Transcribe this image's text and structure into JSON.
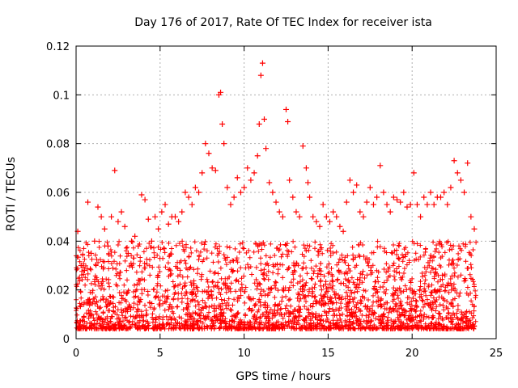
{
  "chart_data": {
    "type": "scatter",
    "title": "Day 176 of 2017, Rate Of TEC Index for receiver ista",
    "xlabel": "GPS time / hours",
    "ylabel": "ROTI / TECUs",
    "xlim": [
      0,
      25
    ],
    "ylim": [
      0,
      0.12
    ],
    "xticks": [
      0,
      5,
      10,
      15,
      20,
      25
    ],
    "yticks": [
      0,
      0.02,
      0.04,
      0.06,
      0.08,
      0.1,
      0.12
    ],
    "xtick_labels": [
      "0",
      "5",
      "10",
      "15",
      "20",
      "25"
    ],
    "ytick_labels": [
      "0",
      "0.02",
      "0.04",
      "0.06",
      "0.08",
      "0.1",
      "0.12"
    ],
    "grid": true,
    "marker": "+",
    "series_color": "#ff0000",
    "series": [
      {
        "name": "ROTI",
        "x": [
          0.1,
          0.3,
          0.5,
          0.7,
          0.9,
          1.1,
          1.3,
          1.5,
          1.7,
          1.9,
          2.1,
          2.3,
          2.5,
          2.7,
          2.9,
          3.1,
          3.3,
          3.5,
          3.7,
          3.9,
          4.1,
          4.3,
          4.5,
          4.7,
          4.9,
          5.1,
          5.3,
          5.5,
          5.7,
          5.9,
          6.1,
          6.3,
          6.5,
          6.7,
          6.9,
          7.1,
          7.3,
          7.5,
          7.7,
          7.9,
          8.1,
          8.3,
          8.5,
          8.6,
          8.7,
          8.8,
          9.0,
          9.2,
          9.4,
          9.6,
          9.8,
          10.0,
          10.2,
          10.4,
          10.6,
          10.8,
          10.9,
          11.0,
          11.1,
          11.2,
          11.3,
          11.5,
          11.7,
          11.9,
          12.1,
          12.3,
          12.5,
          12.6,
          12.7,
          12.9,
          13.1,
          13.3,
          13.5,
          13.7,
          13.8,
          13.9,
          14.1,
          14.3,
          14.5,
          14.7,
          14.9,
          15.1,
          15.3,
          15.5,
          15.7,
          15.9,
          16.1,
          16.3,
          16.5,
          16.7,
          16.9,
          17.1,
          17.3,
          17.5,
          17.7,
          17.9,
          18.1,
          18.3,
          18.5,
          18.7,
          18.9,
          19.1,
          19.3,
          19.5,
          19.7,
          19.9,
          20.1,
          20.3,
          20.5,
          20.7,
          20.9,
          21.1,
          21.3,
          21.5,
          21.7,
          21.9,
          22.1,
          22.3,
          22.5,
          22.7,
          22.9,
          23.1,
          23.3,
          23.5,
          23.7
        ],
        "values": [
          0.044,
          0.03,
          0.028,
          0.056,
          0.035,
          0.04,
          0.054,
          0.05,
          0.045,
          0.038,
          0.05,
          0.069,
          0.048,
          0.052,
          0.046,
          0.035,
          0.04,
          0.042,
          0.038,
          0.059,
          0.057,
          0.049,
          0.04,
          0.05,
          0.045,
          0.052,
          0.055,
          0.047,
          0.05,
          0.05,
          0.048,
          0.052,
          0.06,
          0.058,
          0.055,
          0.062,
          0.06,
          0.068,
          0.08,
          0.076,
          0.07,
          0.069,
          0.1,
          0.101,
          0.088,
          0.08,
          0.062,
          0.055,
          0.058,
          0.066,
          0.06,
          0.062,
          0.07,
          0.065,
          0.068,
          0.075,
          0.088,
          0.108,
          0.113,
          0.09,
          0.078,
          0.064,
          0.06,
          0.056,
          0.052,
          0.05,
          0.094,
          0.089,
          0.065,
          0.058,
          0.052,
          0.05,
          0.079,
          0.07,
          0.064,
          0.058,
          0.05,
          0.048,
          0.046,
          0.055,
          0.05,
          0.048,
          0.052,
          0.05,
          0.046,
          0.044,
          0.056,
          0.065,
          0.06,
          0.063,
          0.052,
          0.05,
          0.056,
          0.062,
          0.055,
          0.058,
          0.071,
          0.06,
          0.055,
          0.052,
          0.058,
          0.057,
          0.056,
          0.06,
          0.054,
          0.055,
          0.068,
          0.055,
          0.05,
          0.058,
          0.055,
          0.06,
          0.055,
          0.058,
          0.058,
          0.06,
          0.055,
          0.062,
          0.073,
          0.068,
          0.065,
          0.06,
          0.072,
          0.05,
          0.045
        ]
      }
    ]
  }
}
